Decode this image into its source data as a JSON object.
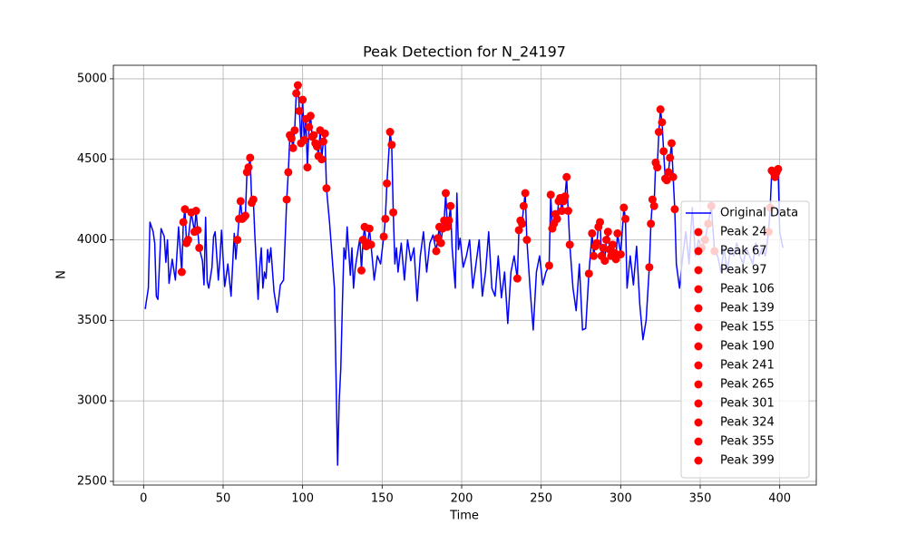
{
  "chart_data": {
    "type": "line",
    "title": "Peak Detection for N_24197",
    "x_label": "Time",
    "y_label": "N",
    "xlim": [
      -19,
      423
    ],
    "ylim": [
      2477,
      5084
    ],
    "xticks": [
      0,
      50,
      100,
      150,
      200,
      250,
      300,
      350,
      400
    ],
    "yticks": [
      2500,
      3000,
      3500,
      4000,
      4500,
      5000
    ],
    "grid": true,
    "legend": "lower right",
    "series": [
      {
        "name": "Original Data",
        "color": "#0000ff",
        "style": "line",
        "x": [
          1,
          3,
          4,
          6,
          7,
          8,
          9,
          11,
          13,
          14,
          15,
          16,
          18,
          20,
          22,
          24,
          25,
          26,
          27,
          28,
          30,
          32,
          33,
          34,
          35,
          37,
          38,
          39,
          40,
          41,
          43,
          44,
          45,
          47,
          48,
          49,
          51,
          53,
          55,
          57,
          58,
          59,
          60,
          61,
          62,
          63,
          64,
          65,
          66,
          67,
          68,
          69,
          70,
          72,
          73,
          74,
          75,
          76,
          77,
          78,
          79,
          80,
          82,
          84,
          86,
          88,
          90,
          91,
          92,
          93,
          94,
          95,
          96,
          97,
          98,
          99,
          100,
          101,
          102,
          103,
          104,
          105,
          106,
          107,
          108,
          109,
          110,
          111,
          112,
          113,
          114,
          115,
          117,
          120,
          122,
          123,
          124,
          125,
          126,
          127,
          128,
          130,
          131,
          132,
          133,
          135,
          136,
          137,
          138,
          139,
          140,
          141,
          142,
          143,
          145,
          147,
          149,
          151,
          152,
          153,
          155,
          156,
          157,
          158,
          159,
          160,
          162,
          164,
          166,
          168,
          170,
          172,
          174,
          176,
          178,
          180,
          182,
          184,
          185,
          186,
          187,
          188,
          189,
          190,
          191,
          192,
          193,
          194,
          196,
          197,
          198,
          199,
          201,
          203,
          205,
          207,
          209,
          211,
          213,
          215,
          217,
          219,
          221,
          223,
          225,
          227,
          229,
          231,
          233,
          235,
          236,
          237,
          238,
          239,
          240,
          241,
          243,
          245,
          247,
          249,
          251,
          253,
          255,
          256,
          257,
          258,
          259,
          260,
          261,
          262,
          263,
          264,
          265,
          266,
          267,
          268,
          270,
          272,
          274,
          276,
          278,
          280,
          282,
          283,
          284,
          285,
          286,
          287,
          288,
          289,
          290,
          291,
          292,
          293,
          294,
          295,
          296,
          297,
          298,
          300,
          302,
          303,
          304,
          306,
          308,
          310,
          312,
          314,
          316,
          318,
          319,
          320,
          321,
          322,
          323,
          324,
          325,
          326,
          327,
          328,
          329,
          330,
          331,
          332,
          333,
          334,
          335,
          337,
          339,
          341,
          343,
          345,
          347,
          349,
          351,
          353,
          355,
          357,
          359,
          361,
          363,
          365,
          367,
          369,
          371,
          373,
          375,
          377,
          379,
          381,
          383,
          385,
          387,
          389,
          391,
          393,
          394,
          395,
          396,
          397,
          398,
          399,
          400,
          402
        ],
        "values": [
          3570,
          3700,
          4110,
          4050,
          3980,
          3650,
          3630,
          4070,
          4020,
          3860,
          4000,
          3730,
          3880,
          3750,
          4080,
          3800,
          4110,
          4190,
          3980,
          4000,
          4170,
          4050,
          4180,
          4060,
          3950,
          3870,
          3720,
          4140,
          3740,
          3700,
          3830,
          4020,
          4050,
          3750,
          3880,
          4060,
          3710,
          3850,
          3650,
          4040,
          3880,
          4000,
          4130,
          4240,
          4130,
          4140,
          4150,
          4420,
          4450,
          4510,
          4230,
          4250,
          4020,
          3630,
          3830,
          3950,
          3700,
          3800,
          3760,
          3940,
          3860,
          3950,
          3680,
          3550,
          3720,
          3750,
          4250,
          4420,
          4650,
          4630,
          4570,
          4680,
          4910,
          4960,
          4800,
          4600,
          4870,
          4620,
          4750,
          4450,
          4700,
          4770,
          4640,
          4650,
          4600,
          4580,
          4520,
          4680,
          4500,
          4610,
          4660,
          4320,
          4100,
          3700,
          2600,
          3000,
          3200,
          3600,
          3950,
          3880,
          4080,
          3780,
          3950,
          3700,
          3820,
          3950,
          4010,
          3810,
          4000,
          4080,
          3960,
          3980,
          4070,
          3970,
          3750,
          3900,
          3850,
          4020,
          4130,
          4350,
          4670,
          4590,
          4170,
          3850,
          3950,
          3800,
          3980,
          3750,
          4000,
          3870,
          3950,
          3620,
          3900,
          4050,
          3800,
          3980,
          4030,
          3930,
          4010,
          4080,
          3980,
          4070,
          4120,
          4290,
          4080,
          4120,
          4210,
          3950,
          3700,
          4290,
          3940,
          4010,
          3830,
          3900,
          4000,
          3700,
          3850,
          4000,
          3650,
          3800,
          4050,
          3700,
          3650,
          3900,
          3640,
          3800,
          3480,
          3800,
          3900,
          3760,
          4060,
          4120,
          4100,
          4210,
          4290,
          4000,
          3700,
          3440,
          3800,
          3900,
          3720,
          3800,
          3840,
          4280,
          4070,
          4100,
          4160,
          4130,
          4240,
          4260,
          4180,
          4240,
          4270,
          4390,
          4180,
          3970,
          3700,
          3560,
          3850,
          3440,
          3450,
          3790,
          4040,
          3900,
          3960,
          3980,
          4080,
          4110,
          3900,
          3950,
          3870,
          4000,
          4050,
          3940,
          3900,
          3970,
          3920,
          3880,
          4040,
          3910,
          4200,
          4130,
          3700,
          3900,
          3720,
          3960,
          3600,
          3380,
          3500,
          3830,
          4100,
          4250,
          4210,
          4480,
          4450,
          4670,
          4810,
          4730,
          4550,
          4380,
          4370,
          4420,
          4510,
          4600,
          4390,
          4190,
          3850,
          3700,
          3900,
          4050,
          3850,
          4200,
          3900,
          4000,
          3950,
          4000,
          4100,
          4210,
          3930,
          3900,
          3800,
          3950,
          3800,
          3950,
          3900,
          3980,
          3900,
          3850,
          3950,
          3900,
          3850,
          3980,
          3900,
          3950,
          3900,
          4050,
          4200,
          4430,
          4420,
          4390,
          4420,
          4440,
          4050,
          3950
        ]
      },
      {
        "name": "Peak 24",
        "color": "#ff0000",
        "style": "marker",
        "x": [
          24,
          25,
          26,
          27,
          28,
          30,
          32,
          33,
          34,
          35
        ],
        "values": [
          3800,
          4110,
          4190,
          3980,
          4000,
          4170,
          4050,
          4180,
          4060,
          3950
        ]
      },
      {
        "name": "Peak 67",
        "color": "#ff0000",
        "style": "marker",
        "x": [
          59,
          60,
          61,
          62,
          63,
          64,
          65,
          66,
          67,
          68,
          69
        ],
        "values": [
          4000,
          4130,
          4240,
          4130,
          4140,
          4150,
          4420,
          4450,
          4510,
          4230,
          4250
        ]
      },
      {
        "name": "Peak 97",
        "color": "#ff0000",
        "style": "marker",
        "x": [
          90,
          91,
          92,
          93,
          94,
          95,
          96,
          97,
          98,
          99,
          100,
          101
        ],
        "values": [
          4250,
          4420,
          4650,
          4630,
          4570,
          4680,
          4910,
          4960,
          4800,
          4600,
          4870,
          4620
        ]
      },
      {
        "name": "Peak 106",
        "color": "#ff0000",
        "style": "marker",
        "x": [
          102,
          103,
          104,
          105,
          106,
          107,
          108,
          109,
          110,
          111,
          112,
          113,
          114,
          115
        ],
        "values": [
          4750,
          4450,
          4700,
          4770,
          4640,
          4650,
          4600,
          4580,
          4520,
          4680,
          4500,
          4610,
          4660,
          4320
        ]
      },
      {
        "name": "Peak 139",
        "color": "#ff0000",
        "style": "marker",
        "x": [
          137,
          138,
          139,
          140,
          141,
          142,
          143
        ],
        "values": [
          3810,
          4000,
          4080,
          3960,
          3980,
          4070,
          3970
        ]
      },
      {
        "name": "Peak 155",
        "color": "#ff0000",
        "style": "marker",
        "x": [
          151,
          152,
          153,
          155,
          156,
          157
        ],
        "values": [
          4020,
          4130,
          4350,
          4670,
          4590,
          4170
        ]
      },
      {
        "name": "Peak 190",
        "color": "#ff0000",
        "style": "marker",
        "x": [
          184,
          185,
          186,
          187,
          188,
          189,
          190,
          191,
          192,
          193
        ],
        "values": [
          3930,
          4010,
          4080,
          3980,
          4070,
          4120,
          4290,
          4080,
          4120,
          4210
        ]
      },
      {
        "name": "Peak 241",
        "color": "#ff0000",
        "style": "marker",
        "x": [
          235,
          236,
          237,
          238,
          239,
          240,
          241
        ],
        "values": [
          3760,
          4060,
          4120,
          4100,
          4210,
          4290,
          4000
        ]
      },
      {
        "name": "Peak 265",
        "color": "#ff0000",
        "style": "marker",
        "x": [
          255,
          256,
          257,
          258,
          259,
          260,
          261,
          262,
          263,
          264,
          265,
          266,
          267,
          268
        ],
        "values": [
          3840,
          4280,
          4070,
          4100,
          4160,
          4130,
          4240,
          4260,
          4180,
          4240,
          4270,
          4390,
          4180,
          3970
        ]
      },
      {
        "name": "Peak 301",
        "color": "#ff0000",
        "style": "marker",
        "x": [
          280,
          282,
          283,
          284,
          285,
          286,
          287,
          288,
          289,
          290,
          291,
          292,
          293,
          294,
          295,
          296,
          297,
          298,
          300,
          302,
          303
        ],
        "values": [
          3790,
          4040,
          3900,
          3960,
          3980,
          4080,
          4110,
          3900,
          3950,
          3870,
          4000,
          4050,
          3940,
          3900,
          3970,
          3920,
          3880,
          4040,
          3910,
          4200,
          4130
        ]
      },
      {
        "name": "Peak 324",
        "color": "#ff0000",
        "style": "marker",
        "x": [
          318,
          319,
          320,
          321,
          322,
          323,
          324,
          325,
          326,
          327,
          328,
          329,
          330,
          331,
          332,
          333,
          334
        ],
        "values": [
          3830,
          4100,
          4250,
          4210,
          4480,
          4450,
          4670,
          4810,
          4730,
          4550,
          4380,
          4370,
          4420,
          4510,
          4600,
          4390,
          4190
        ]
      },
      {
        "name": "Peak 355",
        "color": "#ff0000",
        "style": "marker",
        "x": [
          351,
          353,
          355,
          357,
          359
        ],
        "values": [
          3950,
          4000,
          4100,
          4210,
          3930
        ]
      },
      {
        "name": "Peak 399",
        "color": "#ff0000",
        "style": "marker",
        "x": [
          393,
          394,
          395,
          396,
          397,
          398,
          399
        ],
        "values": [
          4050,
          4200,
          4430,
          4420,
          4390,
          4420,
          4440
        ]
      }
    ]
  }
}
